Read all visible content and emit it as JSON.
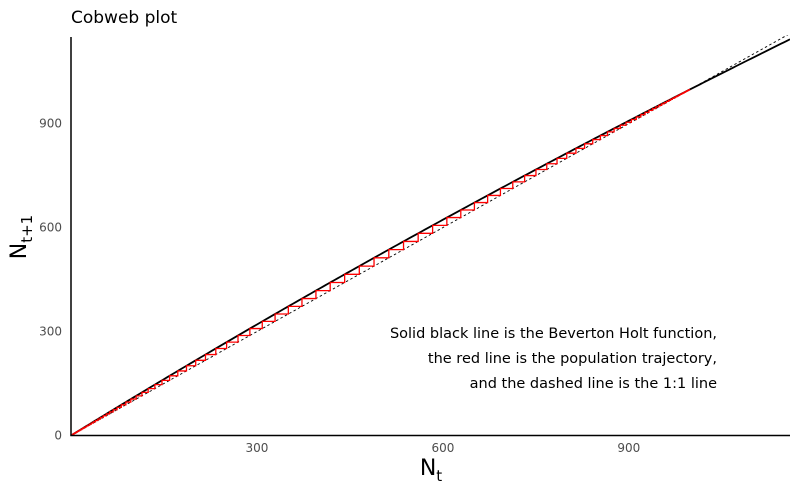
{
  "chart_data": {
    "type": "line",
    "title": "Cobweb plot",
    "xlabel": {
      "main": "N",
      "sub": "t"
    },
    "ylabel": {
      "main": "N",
      "sub": "t+1"
    },
    "xlim": [
      0,
      1160
    ],
    "ylim": [
      0,
      1150
    ],
    "x_ticks": [
      300,
      600,
      900
    ],
    "y_ticks": [
      0,
      300,
      600,
      900
    ],
    "grid": false,
    "beverton_holt": {
      "R0": 1.1,
      "K": 1000
    },
    "trajectory": {
      "N0": 1,
      "steps": 140
    },
    "series": [
      {
        "role": "beverton-holt-function",
        "color": "#000000",
        "style": "solid"
      },
      {
        "role": "population-trajectory",
        "color": "#ff0000",
        "style": "solid"
      },
      {
        "role": "one-to-one-line",
        "color": "#000000",
        "style": "dashed"
      }
    ],
    "annotation": [
      "Solid black line is the Beverton Holt function,",
      "the red line is the population trajectory,",
      "and the dashed line is the 1:1 line"
    ]
  }
}
